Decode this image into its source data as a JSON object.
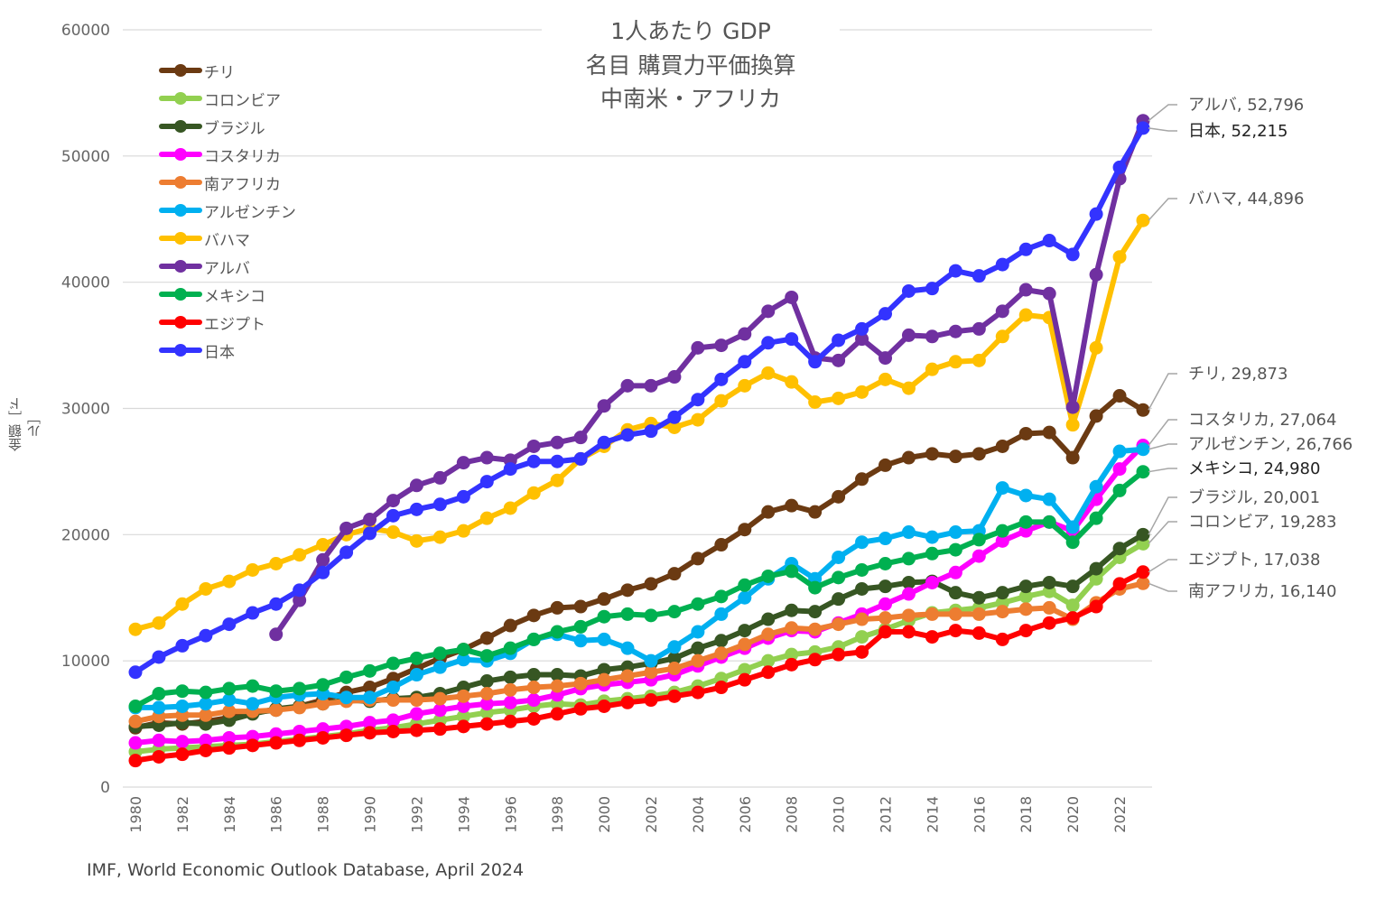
{
  "chart_data": {
    "type": "line",
    "title_lines": [
      "1人あたり GDP",
      "名目 購買力平価換算",
      "中南米・アフリカ"
    ],
    "ylabel": "金額［ドル］",
    "xlabel": "",
    "source": "IMF, World Economic Outlook Database, April 2024",
    "ylim": [
      0,
      60000
    ],
    "yticks": [
      "0",
      "10000",
      "20000",
      "30000",
      "40000",
      "50000",
      "60000"
    ],
    "xticks": [
      "1980",
      "1982",
      "1984",
      "1986",
      "1988",
      "1990",
      "1992",
      "1994",
      "1996",
      "1998",
      "2000",
      "2002",
      "2004",
      "2006",
      "2008",
      "2010",
      "2012",
      "2014",
      "2016",
      "2018",
      "2020",
      "2022"
    ],
    "x_start": 1980,
    "x_end": 2023,
    "grid": "horizontal",
    "legend_position": "top-left",
    "series": [
      {
        "name": "チリ",
        "color": "#6b3a12",
        "start": 1980,
        "values": [
          4700,
          5100,
          5000,
          5200,
          5500,
          5900,
          6100,
          6400,
          6900,
          7500,
          7900,
          8600,
          9400,
          10200,
          10900,
          11800,
          12800,
          13600,
          14200,
          14300,
          14900,
          15600,
          16100,
          16900,
          18100,
          19200,
          20400,
          21800,
          22300,
          21800,
          23000,
          24400,
          25500,
          26100,
          26400,
          26200,
          26400,
          27000,
          28000,
          28100,
          26100,
          29400,
          31000,
          29873
        ],
        "end_label": "チリ, 29,873"
      },
      {
        "name": "コロンビア",
        "color": "#92d050",
        "start": 1980,
        "values": [
          2800,
          3000,
          3100,
          3200,
          3300,
          3400,
          3600,
          3800,
          4000,
          4200,
          4500,
          4700,
          5000,
          5300,
          5600,
          5900,
          6100,
          6400,
          6600,
          6500,
          6800,
          7000,
          7200,
          7500,
          8000,
          8600,
          9300,
          10000,
          10500,
          10700,
          11100,
          11900,
          12500,
          13200,
          13800,
          14000,
          14200,
          14600,
          15100,
          15500,
          14400,
          16500,
          18200,
          19283
        ],
        "end_label": "コロンビア, 19,283"
      },
      {
        "name": "ブラジル",
        "color": "#375623",
        "start": 1980,
        "values": [
          4800,
          4900,
          5100,
          5000,
          5300,
          5800,
          6200,
          6400,
          6600,
          6900,
          6800,
          7000,
          7100,
          7400,
          7900,
          8400,
          8700,
          8900,
          8900,
          8800,
          9300,
          9500,
          9800,
          10200,
          11000,
          11600,
          12400,
          13300,
          14000,
          13900,
          14900,
          15700,
          15900,
          16200,
          16300,
          15400,
          15000,
          15400,
          15900,
          16200,
          15900,
          17300,
          18900,
          20001
        ],
        "end_label": "ブラジル, 20,001"
      },
      {
        "name": "コスタリカ",
        "color": "#ff00ff",
        "start": 1980,
        "values": [
          3500,
          3700,
          3600,
          3700,
          3900,
          4000,
          4200,
          4400,
          4600,
          4800,
          5100,
          5300,
          5800,
          6100,
          6400,
          6600,
          6700,
          6900,
          7300,
          7800,
          8100,
          8300,
          8500,
          8900,
          9600,
          10300,
          11000,
          11800,
          12400,
          12300,
          13000,
          13700,
          14500,
          15300,
          16200,
          17000,
          18300,
          19500,
          20300,
          21000,
          20300,
          22800,
          25200,
          27064
        ],
        "end_label": "コスタリカ, 27,064"
      },
      {
        "name": "南アフリカ",
        "color": "#ed7d31",
        "start": 1980,
        "values": [
          5200,
          5600,
          5700,
          5700,
          6000,
          6000,
          6100,
          6300,
          6600,
          6800,
          6900,
          6900,
          6900,
          7000,
          7200,
          7400,
          7700,
          7900,
          8000,
          8200,
          8500,
          8800,
          9100,
          9400,
          10000,
          10600,
          11300,
          12100,
          12600,
          12500,
          12900,
          13300,
          13400,
          13600,
          13700,
          13700,
          13700,
          13900,
          14100,
          14200,
          13300,
          14600,
          15700,
          16140
        ],
        "end_label": "南アフリカ, 16,140"
      },
      {
        "name": "アルゼンチン",
        "color": "#00b0f0",
        "start": 1980,
        "values": [
          6300,
          6300,
          6400,
          6600,
          6900,
          6600,
          7100,
          7300,
          7400,
          7100,
          7100,
          7900,
          8900,
          9500,
          10100,
          10000,
          10600,
          11700,
          12100,
          11600,
          11700,
          11000,
          10000,
          11100,
          12300,
          13700,
          15000,
          16500,
          17700,
          16500,
          18200,
          19400,
          19700,
          20200,
          19800,
          20200,
          20300,
          23700,
          23100,
          22800,
          20600,
          23800,
          26600,
          26766
        ],
        "end_label": "アルゼンチン, 26,766"
      },
      {
        "name": "バハマ",
        "color": "#ffc000",
        "start": 1980,
        "values": [
          12500,
          13000,
          14500,
          15700,
          16300,
          17200,
          17700,
          18400,
          19200,
          20000,
          20500,
          20200,
          19500,
          19800,
          20300,
          21300,
          22100,
          23300,
          24300,
          26000,
          27000,
          28300,
          28800,
          28500,
          29100,
          30600,
          31800,
          32800,
          32100,
          30500,
          30800,
          31300,
          32300,
          31600,
          33100,
          33700,
          33800,
          35700,
          37400,
          37200,
          28700,
          34800,
          42000,
          44896
        ],
        "end_label": "バハマ, 44,896"
      },
      {
        "name": "アルバ",
        "color": "#7030a0",
        "start": 1986,
        "values": [
          12100,
          14800,
          18000,
          20500,
          21200,
          22700,
          23900,
          24500,
          25700,
          26100,
          25900,
          27000,
          27300,
          27700,
          30200,
          31800,
          31800,
          32500,
          34800,
          35000,
          35900,
          37700,
          38800,
          34000,
          33800,
          35500,
          34000,
          35800,
          35700,
          36100,
          36300,
          37700,
          39400,
          39100,
          30100,
          40600,
          48200,
          52796
        ],
        "end_label": "アルバ, 52,796"
      },
      {
        "name": "メキシコ",
        "color": "#00b050",
        "start": 1980,
        "values": [
          6400,
          7400,
          7600,
          7500,
          7800,
          8000,
          7600,
          7800,
          8100,
          8700,
          9200,
          9800,
          10200,
          10600,
          10900,
          10400,
          11000,
          11700,
          12300,
          12700,
          13500,
          13700,
          13600,
          13900,
          14500,
          15100,
          16000,
          16700,
          17100,
          15800,
          16600,
          17200,
          17700,
          18100,
          18500,
          18800,
          19600,
          20300,
          21000,
          21000,
          19400,
          21300,
          23500,
          24980
        ],
        "end_label": "メキシコ, 24,980"
      },
      {
        "name": "エジプト",
        "color": "#ff0000",
        "start": 1980,
        "values": [
          2100,
          2400,
          2600,
          2900,
          3100,
          3300,
          3500,
          3700,
          3900,
          4100,
          4300,
          4400,
          4500,
          4600,
          4800,
          5000,
          5200,
          5400,
          5800,
          6200,
          6400,
          6700,
          6900,
          7200,
          7500,
          7900,
          8500,
          9100,
          9700,
          10100,
          10500,
          10700,
          12300,
          12300,
          11900,
          12400,
          12200,
          11700,
          12400,
          13000,
          13400,
          14300,
          16100,
          17038
        ],
        "end_label": "エジプト, 17,038"
      },
      {
        "name": "日本",
        "color": "#3333ff",
        "start": 1980,
        "values": [
          9100,
          10300,
          11200,
          12000,
          12900,
          13800,
          14500,
          15600,
          17000,
          18600,
          20100,
          21500,
          22000,
          22400,
          23000,
          24200,
          25200,
          25800,
          25800,
          26000,
          27300,
          27900,
          28200,
          29300,
          30700,
          32300,
          33700,
          35200,
          35500,
          33700,
          35400,
          36300,
          37500,
          39300,
          39500,
          40900,
          40500,
          41400,
          42600,
          43300,
          42200,
          45400,
          49100,
          52215
        ],
        "end_label": "日本, 52,215"
      }
    ]
  }
}
